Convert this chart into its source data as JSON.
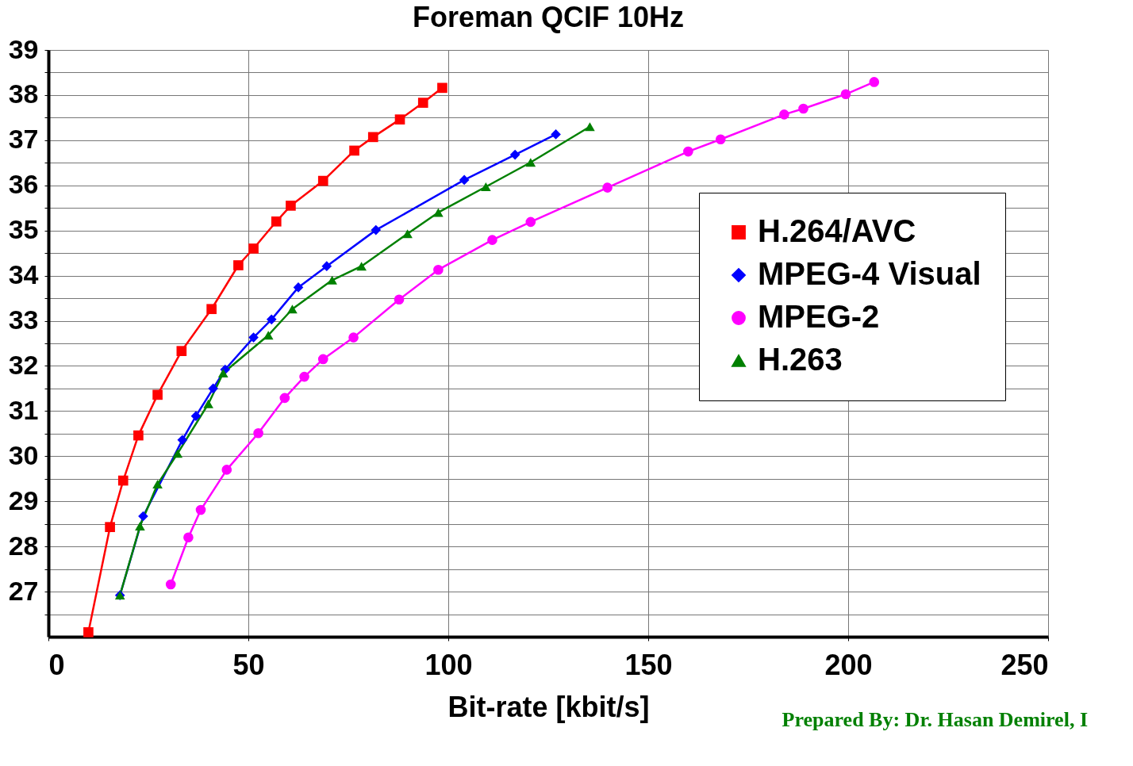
{
  "chart_data": {
    "type": "line",
    "title": "Foreman QCIF 10Hz",
    "xlabel": "Bit-rate [kbit/s]",
    "annotations": [
      "Prepared By: Dr. Hasan Demirel, I"
    ],
    "xlim": [
      0,
      250
    ],
    "xticks": [
      0,
      50,
      100,
      150,
      200,
      250
    ],
    "ylim": [
      26,
      39
    ],
    "yticks": [
      {
        "value": 26.5,
        "label": null
      },
      27,
      {
        "value": 27.5,
        "label": null
      },
      28,
      {
        "value": 28.5,
        "label": null
      },
      29,
      {
        "value": 29.5,
        "label": null
      },
      30,
      {
        "value": 30.5,
        "label": null
      },
      31,
      {
        "value": 31.5,
        "label": null
      },
      32,
      {
        "value": 32.5,
        "label": null
      },
      33,
      {
        "value": 33.5,
        "label": null
      },
      34,
      {
        "value": 34.5,
        "label": null
      },
      35,
      {
        "value": 35.5,
        "label": null
      },
      36,
      {
        "value": 36.5,
        "label": null
      },
      37,
      {
        "value": 37.5,
        "label": null
      },
      38,
      {
        "value": 38.5,
        "label": null
      },
      39
    ],
    "grid": true,
    "legend": "right",
    "line_style": "solid",
    "series": [
      {
        "name": "H.264/AVC",
        "color": "#ff0000",
        "marker": "square",
        "x": [
          10,
          15.4,
          18.7,
          22.5,
          27.3,
          33.3,
          40.8,
          47.5,
          51.3,
          57,
          60.6,
          68.7,
          76.5,
          81.2,
          87.9,
          93.7,
          98.5
        ],
        "values": [
          26.1,
          28.43,
          29.46,
          30.46,
          31.36,
          32.33,
          33.26,
          34.23,
          34.6,
          35.2,
          35.55,
          36.1,
          36.77,
          37.07,
          37.46,
          37.83,
          38.16
        ]
      },
      {
        "name": "MPEG-4 Visual",
        "color": "#0000ff",
        "marker": "diamond",
        "x": [
          17.9,
          23.7,
          33.5,
          36.9,
          41.2,
          44.2,
          51.3,
          55.8,
          62.5,
          69.6,
          81.9,
          104,
          116.7,
          126.9
        ],
        "values": [
          26.92,
          28.67,
          30.36,
          30.89,
          31.5,
          31.92,
          32.63,
          33.03,
          33.74,
          34.21,
          35.01,
          36.12,
          36.68,
          37.13
        ]
      },
      {
        "name": "MPEG-2",
        "color": "#ff00ff",
        "marker": "circle",
        "x": [
          30.6,
          35.0,
          38.1,
          44.6,
          52.5,
          59.1,
          64,
          68.7,
          76.3,
          87.7,
          97.5,
          111,
          120.6,
          139.8,
          160,
          168.1,
          184,
          188.8,
          199.4,
          206.5
        ],
        "values": [
          27.16,
          28.2,
          28.81,
          29.7,
          30.51,
          31.29,
          31.76,
          32.15,
          32.63,
          33.47,
          34.13,
          34.79,
          35.19,
          35.95,
          36.75,
          37.02,
          37.57,
          37.7,
          38.02,
          38.29
        ]
      },
      {
        "name": "H.263",
        "color": "#008000",
        "marker": "triangle",
        "x": [
          17.9,
          22.9,
          27.3,
          32.3,
          40,
          43.7,
          55,
          61,
          70.96,
          78.3,
          89.8,
          97.5,
          109.4,
          120.6,
          135.4
        ],
        "values": [
          26.92,
          28.45,
          29.38,
          30.06,
          31.16,
          31.84,
          32.68,
          33.26,
          33.9,
          34.21,
          34.93,
          35.4,
          35.97,
          36.51,
          37.3
        ]
      }
    ]
  }
}
